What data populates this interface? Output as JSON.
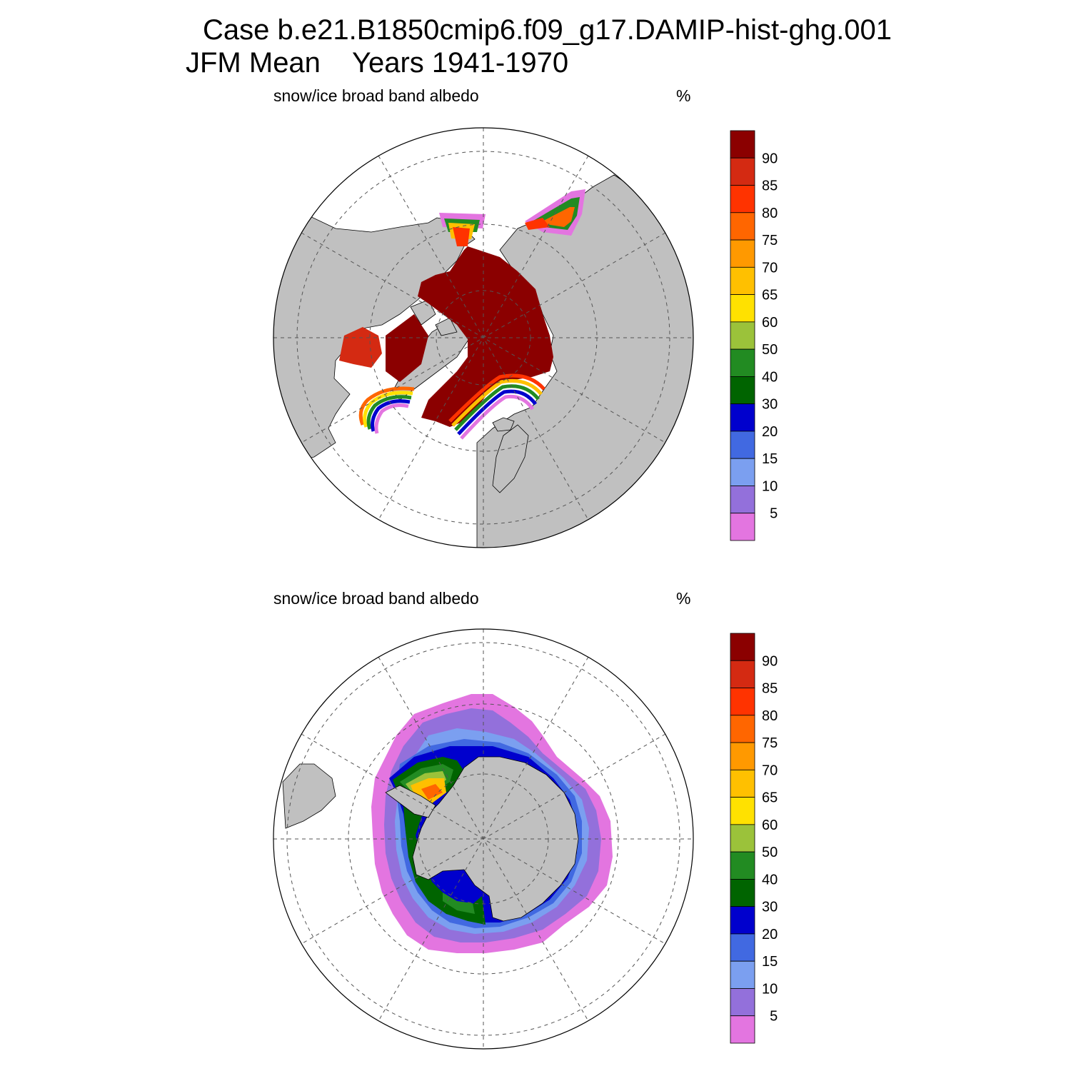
{
  "header": {
    "case_line": "Case b.e21.B1850cmip6.f09_g17.DAMIP-hist-ghg.001",
    "season": "JFM Mean",
    "years": "Years 1941-1970"
  },
  "panels": [
    {
      "id": "north",
      "hemisphere": "Northern",
      "variable": "snow/ice broad band albedo",
      "units": "%"
    },
    {
      "id": "south",
      "hemisphere": "Southern",
      "variable": "snow/ice broad band albedo",
      "units": "%"
    }
  ],
  "colorbar": {
    "labels": [
      "90",
      "85",
      "80",
      "75",
      "70",
      "65",
      "60",
      "50",
      "40",
      "30",
      "20",
      "15",
      "10",
      "5"
    ],
    "colors": [
      "#8b0000",
      "#d42a12",
      "#ff3300",
      "#ff6600",
      "#ff9900",
      "#ffc000",
      "#ffe100",
      "#9bc23a",
      "#228b22",
      "#006400",
      "#0000cd",
      "#4169e1",
      "#7b9ff0",
      "#9370db",
      "#e375e0"
    ]
  },
  "map_style": {
    "land": "#c0c0c0",
    "ocean": "#ffffff"
  }
}
